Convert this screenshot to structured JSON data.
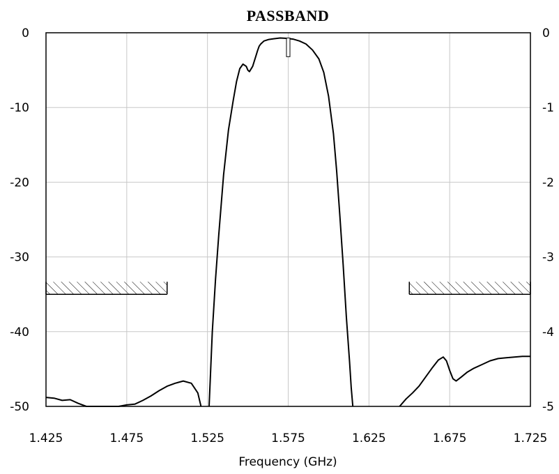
{
  "chart_data": {
    "type": "line",
    "title": "PASSBAND",
    "xlabel": "Frequency (GHz)",
    "ylabel": "",
    "xlim": [
      1.425,
      1.725
    ],
    "ylim": [
      -50,
      0
    ],
    "x_ticks": [
      "1.425",
      "1.475",
      "1.525",
      "1.575",
      "1.625",
      "1.675",
      "1.725"
    ],
    "y_ticks_left": [
      "0",
      "-10",
      "-20",
      "-30",
      "-40",
      "-50"
    ],
    "y_ticks_right": [
      "0",
      "-1",
      "-2",
      "-3",
      "-4",
      "-5"
    ],
    "grid": true,
    "colors": {
      "line": "#000000",
      "grid": "#c8c8c8",
      "frame": "#000000",
      "mask": "#000000"
    },
    "series": [
      {
        "segments": [
          {
            "x": [
              1.425,
              1.43,
              1.435,
              1.44,
              1.445,
              1.45,
              1.455,
              1.46,
              1.465,
              1.47,
              1.475,
              1.48,
              1.485,
              1.49,
              1.495,
              1.5,
              1.505,
              1.51,
              1.515,
              1.519,
              1.521
            ],
            "y": [
              -48.8,
              -48.9,
              -49.2,
              -49.1,
              -49.6,
              -50,
              -50,
              -50,
              -50,
              -50,
              -49.8,
              -49.7,
              -49.2,
              -48.6,
              -47.9,
              -47.3,
              -46.9,
              -46.6,
              -46.9,
              -48.2,
              -50
            ]
          },
          {
            "x": [
              1.526,
              1.527,
              1.528,
              1.53,
              1.532,
              1.535,
              1.538,
              1.541,
              1.543,
              1.545,
              1.547,
              1.549,
              1.55,
              1.551,
              1.553,
              1.555,
              1.556,
              1.557,
              1.558,
              1.56,
              1.563,
              1.566,
              1.57,
              1.574,
              1.578,
              1.582,
              1.586,
              1.59,
              1.594,
              1.597,
              1.6,
              1.603,
              1.605,
              1.607,
              1.609,
              1.611,
              1.613,
              1.614,
              1.615
            ],
            "y": [
              -50,
              -45,
              -40,
              -33,
              -27,
              -19,
              -13,
              -9,
              -6.5,
              -4.8,
              -4.2,
              -4.5,
              -5,
              -5.2,
              -4.5,
              -3.1,
              -2.4,
              -1.8,
              -1.5,
              -1.1,
              -0.9,
              -0.8,
              -0.7,
              -0.75,
              -0.85,
              -1.1,
              -1.5,
              -2.3,
              -3.5,
              -5.3,
              -8.5,
              -13.5,
              -18.5,
              -24.5,
              -31,
              -38,
              -44,
              -47.5,
              -50
            ]
          },
          {
            "x": [
              1.644,
              1.648,
              1.652,
              1.656,
              1.66,
              1.664,
              1.668,
              1.671,
              1.673,
              1.675,
              1.677,
              1.679,
              1.682,
              1.686,
              1.69,
              1.695,
              1.7,
              1.705,
              1.71,
              1.715,
              1.72,
              1.725
            ],
            "y": [
              -50,
              -49,
              -48.2,
              -47.3,
              -46.1,
              -44.9,
              -43.8,
              -43.4,
              -43.9,
              -45.2,
              -46.3,
              -46.6,
              -46.1,
              -45.4,
              -44.9,
              -44.4,
              -43.9,
              -43.6,
              -43.5,
              -43.4,
              -43.3,
              -43.3
            ]
          }
        ]
      }
    ],
    "annotations": [
      {
        "type": "rejection-mask",
        "x_range": [
          1.425,
          1.5
        ],
        "y": -35
      },
      {
        "type": "rejection-mask",
        "x_range": [
          1.65,
          1.725
        ],
        "y": -35
      },
      {
        "type": "marker",
        "x": 1.575,
        "y_top": -0.7,
        "y_bottom": -3.2
      }
    ]
  }
}
